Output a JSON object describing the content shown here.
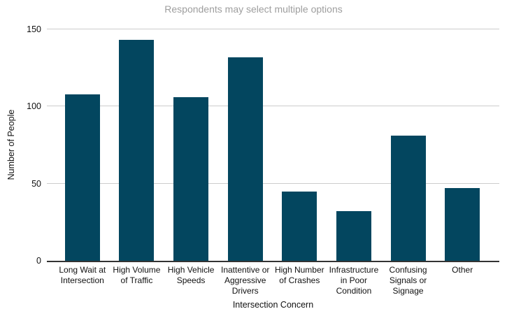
{
  "chart_data": {
    "type": "bar",
    "title": "Respondents may select multiple options",
    "xlabel": "Intersection Concern",
    "ylabel": "Number of People",
    "categories": [
      "Long Wait at Intersection",
      "High Volume of Traffic",
      "High Vehicle Speeds",
      "Inattentive or Aggressive Drivers",
      "High Number of Crashes",
      "Infrastructure in Poor Condition",
      "Confusing Signals or Signage",
      "Other"
    ],
    "xtick_labels": [
      "Long Wait at\nIntersection",
      "High Volume\nof Traffic",
      "High Vehicle\nSpeeds",
      "Inattentive or\nAggressive\nDrivers",
      "High Number\nof Crashes",
      "Infrastructure\nin Poor\nCondition",
      "Confusing\nSignals or\nSignage",
      "Other"
    ],
    "values": [
      108,
      143,
      106,
      132,
      45,
      32,
      81,
      47
    ],
    "yticks": [
      0,
      50,
      100,
      150
    ],
    "ylim": [
      0,
      150
    ],
    "grid": true,
    "legend": "none",
    "bar_color": "#03465f"
  },
  "colors": {
    "bar": "#03465f",
    "gridline": "#cccccc",
    "baseline": "#333333",
    "title_text": "#9e9e9e",
    "tick_text": "#111111",
    "background": "#ffffff"
  }
}
